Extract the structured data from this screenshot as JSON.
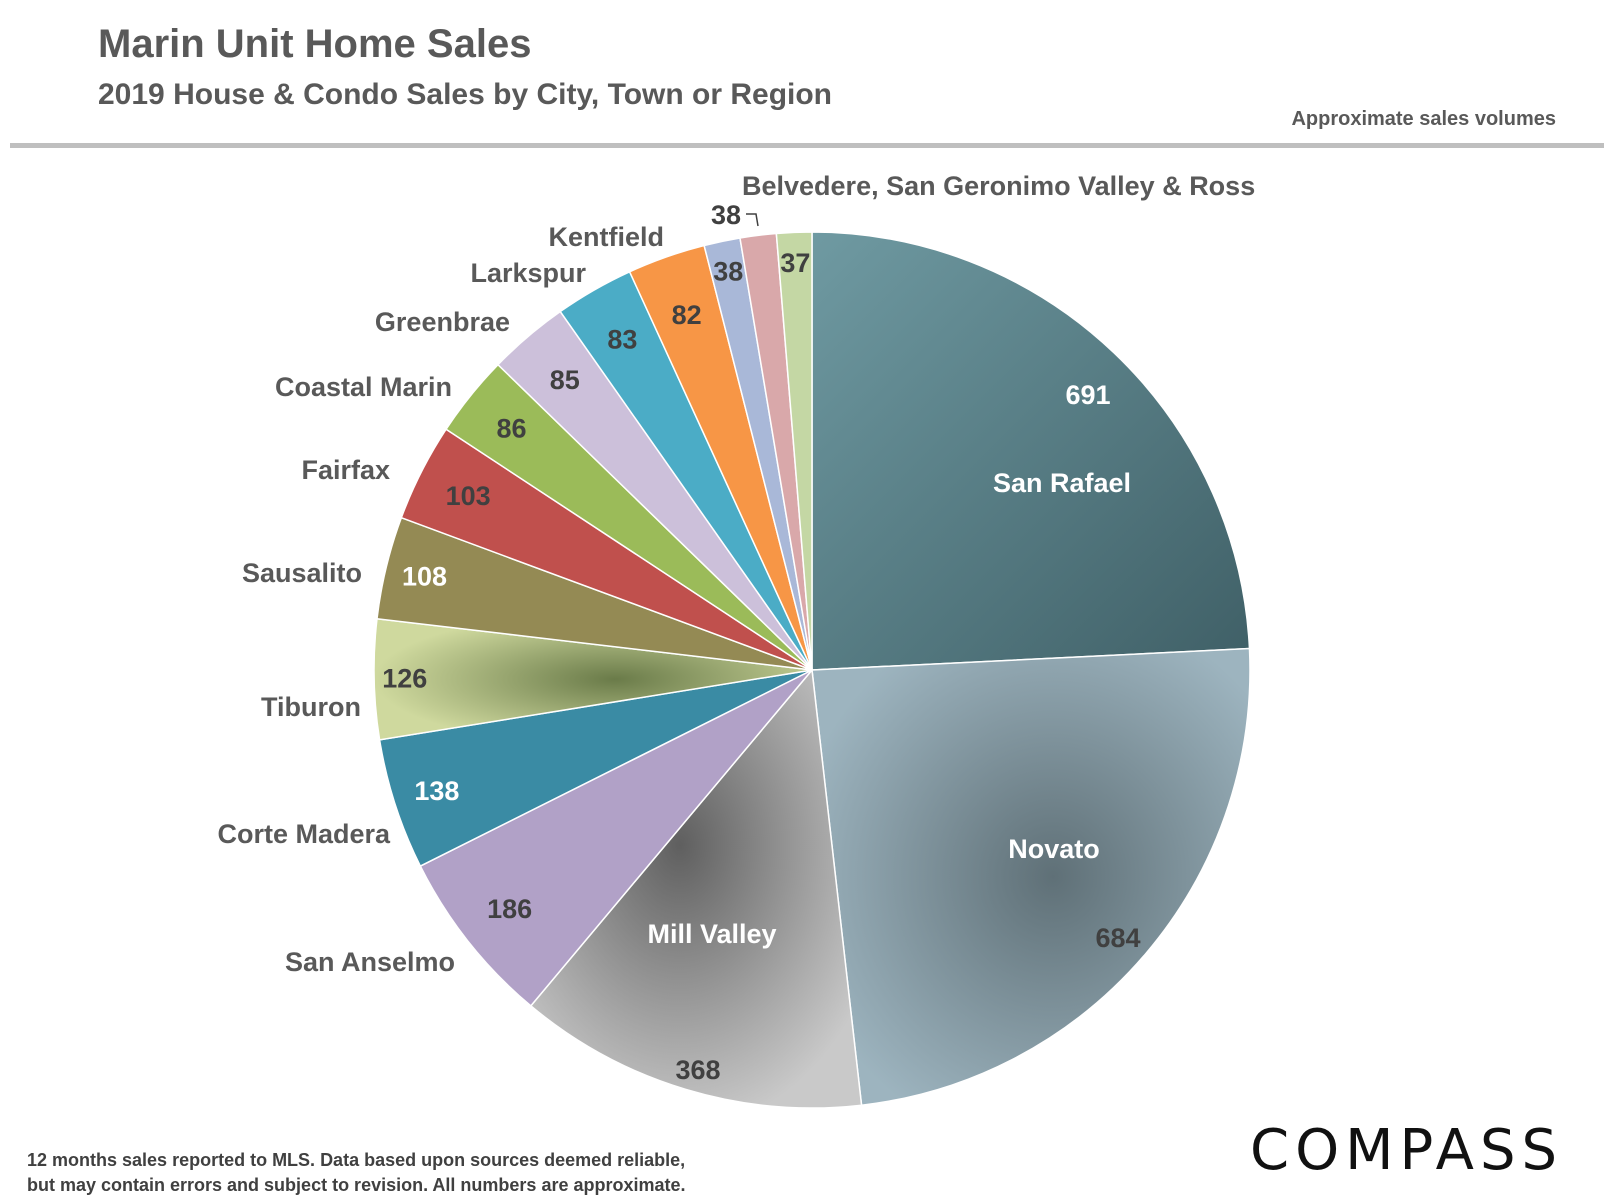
{
  "header": {
    "title": "Marin Unit Home Sales",
    "subtitle": "2019 House & Condo Sales by City, Town or Region",
    "note": "Approximate sales volumes"
  },
  "footer": {
    "footnote_line1": "12 months sales reported to MLS. Data based upon sources deemed reliable,",
    "footnote_line2": "but may contain errors and subject to revision. All numbers are approximate.",
    "logo": "COMPASS"
  },
  "colors": {
    "title": "#595959",
    "rule": "#bfbfbf",
    "label_dark": "#404040",
    "label_light": "#ffffff"
  },
  "chart_data": {
    "type": "pie",
    "title": "2019 House & Condo Sales by City, Town or Region",
    "start": "12 o'clock, clockwise",
    "slices": [
      {
        "label": "San Rafael",
        "value": 691,
        "color": "#5e8a93"
      },
      {
        "label": "Novato",
        "value": 684,
        "color": "#8ea7b3"
      },
      {
        "label": "Mill Valley",
        "value": 368,
        "color": "#a3a3a3"
      },
      {
        "label": "San Anselmo",
        "value": 186,
        "color": "#b1a1c7"
      },
      {
        "label": "Corte Madera",
        "value": 138,
        "color": "#3a8ba4"
      },
      {
        "label": "Tiburon",
        "value": 126,
        "color": "#c5d194"
      },
      {
        "label": "Sausalito",
        "value": 108,
        "color": "#948a54"
      },
      {
        "label": "Fairfax",
        "value": 103,
        "color": "#c0504d"
      },
      {
        "label": "Coastal Marin",
        "value": 86,
        "color": "#9bbb59"
      },
      {
        "label": "Greenbrae",
        "value": 85,
        "color": "#ccc0da"
      },
      {
        "label": "Larkspur",
        "value": 83,
        "color": "#4bacc6"
      },
      {
        "label": "Kentfield",
        "value": 82,
        "color": "#f79646"
      },
      {
        "label": "",
        "value": 38,
        "color": "#a9b8d8"
      },
      {
        "label": "",
        "value": 38,
        "color": "#d9a8aa"
      },
      {
        "label": "",
        "value": 37,
        "color": "#c4d7a4"
      }
    ],
    "group_label": "Belvedere, San Geronimo Valley & Ross"
  }
}
